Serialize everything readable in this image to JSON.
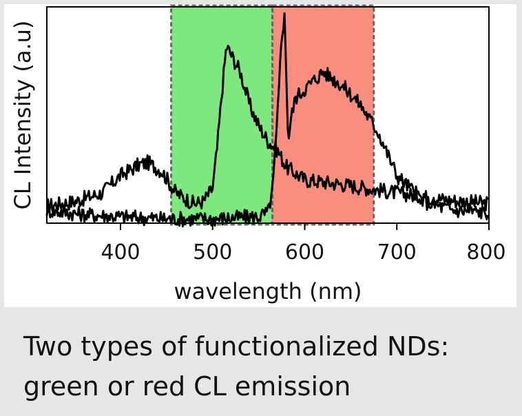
{
  "caption": {
    "line1": "Two types of functionalized NDs:",
    "line2": "green or red CL emission"
  },
  "chart_data": {
    "type": "line",
    "title": "",
    "xlabel": "wavelength (nm)",
    "ylabel": "CL Intensity (a.u)",
    "xlim": [
      320,
      800
    ],
    "ylim": [
      0,
      1
    ],
    "xticks": [
      400,
      500,
      600,
      700,
      800
    ],
    "grid": false,
    "bands": [
      {
        "x0": 455,
        "x1": 565,
        "color": "#7ee87e"
      },
      {
        "x0": 565,
        "x1": 675,
        "color": "#fa8e7e"
      }
    ],
    "series": [
      {
        "color": "#000000",
        "x": [
          320,
          350,
          380,
          400,
          420,
          430,
          445,
          460,
          480,
          490,
          500,
          505,
          510,
          515,
          520,
          530,
          540,
          550,
          560,
          570,
          580,
          600,
          640,
          700,
          750,
          800
        ],
        "values": [
          0.08,
          0.1,
          0.14,
          0.22,
          0.27,
          0.28,
          0.24,
          0.14,
          0.09,
          0.1,
          0.16,
          0.35,
          0.6,
          0.82,
          0.78,
          0.7,
          0.55,
          0.45,
          0.38,
          0.34,
          0.26,
          0.2,
          0.18,
          0.14,
          0.11,
          0.09
        ]
      },
      {
        "color": "#000000",
        "x": [
          320,
          360,
          400,
          450,
          500,
          550,
          560,
          565,
          570,
          575,
          578,
          580,
          582,
          585,
          590,
          595,
          600,
          610,
          620,
          640,
          660,
          680,
          700,
          730,
          760,
          800
        ],
        "values": [
          0.06,
          0.04,
          0.03,
          0.02,
          0.02,
          0.03,
          0.05,
          0.15,
          0.45,
          0.88,
          0.95,
          0.7,
          0.38,
          0.48,
          0.58,
          0.6,
          0.62,
          0.66,
          0.7,
          0.64,
          0.55,
          0.42,
          0.22,
          0.1,
          0.06,
          0.05
        ]
      }
    ]
  }
}
